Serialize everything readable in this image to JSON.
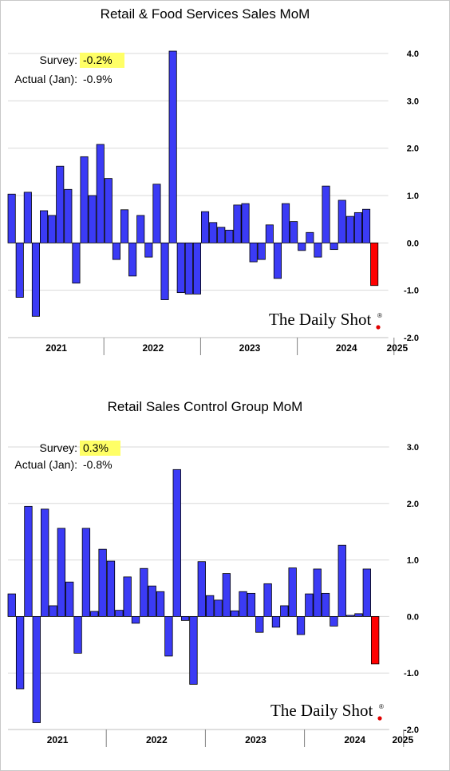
{
  "chart_data": [
    {
      "type": "bar",
      "title": "Retail & Food Services Sales MoM",
      "survey_label": "Survey:",
      "survey_value": "-0.2%",
      "actual_label": "Actual (Jan):",
      "actual_value": "-0.9%",
      "ylim": [
        -2.0,
        4.0
      ],
      "yticks": [
        4.0,
        3.0,
        2.0,
        1.0,
        0.0,
        -1.0,
        -2.0
      ],
      "ytick_labels": [
        "4.0",
        "3.0",
        "2.0",
        "1.0",
        "0.0",
        "-1.0",
        "-2.0"
      ],
      "grid": true,
      "year_labels": [
        "2021",
        "2022",
        "2023",
        "2024",
        "2025"
      ],
      "year_boundaries": [
        12,
        24,
        36,
        48
      ],
      "values": [
        1.03,
        -1.15,
        1.07,
        -1.55,
        0.68,
        0.58,
        1.62,
        1.13,
        -0.85,
        1.82,
        1.0,
        2.08,
        1.36,
        -0.35,
        0.7,
        -0.7,
        0.58,
        -0.3,
        1.24,
        -1.2,
        4.05,
        -1.05,
        -1.08,
        -1.08,
        0.66,
        0.43,
        0.33,
        0.27,
        0.8,
        0.83,
        -0.4,
        -0.35,
        0.38,
        -0.75,
        0.83,
        0.45,
        -0.16,
        0.22,
        -0.3,
        1.2,
        -0.14,
        0.9,
        0.56,
        0.64,
        0.71,
        -0.9
      ],
      "highlight_last": true
    },
    {
      "type": "bar",
      "title": "Retail Sales Control Group MoM",
      "survey_label": "Survey:",
      "survey_value": "0.3%",
      "actual_label": "Actual (Jan):",
      "actual_value": "-0.8%",
      "ylim": [
        -2.0,
        3.0
      ],
      "yticks": [
        3.0,
        2.0,
        1.0,
        0.0,
        -1.0,
        -2.0
      ],
      "ytick_labels": [
        "3.0",
        "2.0",
        "1.0",
        "0.0",
        "-1.0",
        "-2.0"
      ],
      "grid": true,
      "year_labels": [
        "2021",
        "2022",
        "2023",
        "2024",
        "2025"
      ],
      "year_boundaries": [
        12,
        24,
        36,
        48
      ],
      "values": [
        0.4,
        -1.28,
        1.95,
        -1.88,
        1.9,
        0.19,
        1.56,
        0.61,
        -0.65,
        1.56,
        0.09,
        1.19,
        0.98,
        0.11,
        0.7,
        -0.12,
        0.85,
        0.54,
        0.44,
        -0.7,
        2.6,
        -0.07,
        -1.2,
        0.97,
        0.37,
        0.29,
        0.76,
        0.1,
        0.44,
        0.41,
        -0.28,
        0.58,
        -0.19,
        0.19,
        0.86,
        -0.32,
        0.4,
        0.84,
        0.41,
        -0.17,
        1.26,
        0.02,
        0.05,
        0.84,
        -0.84
      ],
      "highlight_last": true
    }
  ],
  "colors": {
    "bar": "#3b3bf5",
    "bar_last": "#ff0000",
    "highlight": "#ffff66",
    "logo_dot": "#e00000"
  },
  "logo_text": "The Daily Shot",
  "logo_mark": "®"
}
